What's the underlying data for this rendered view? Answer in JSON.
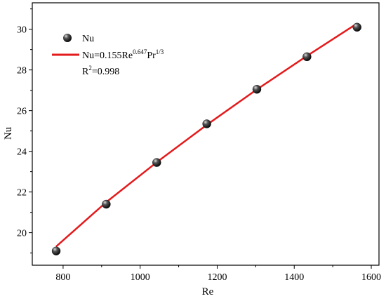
{
  "chart_data": {
    "type": "scatter",
    "title": "",
    "xlabel": "Re",
    "ylabel": "Nu",
    "xlim": [
      720,
      1620
    ],
    "ylim": [
      18.4,
      31.3
    ],
    "xticks": [
      800,
      1000,
      1200,
      1400,
      1600
    ],
    "yticks": [
      20,
      22,
      24,
      26,
      28,
      30
    ],
    "xtick_labels": [
      "800",
      "1000",
      "1200",
      "1400",
      "1600"
    ],
    "ytick_labels": [
      "20",
      "22",
      "24",
      "26",
      "28",
      "30"
    ],
    "grid": false,
    "legend_position": "top-left",
    "series": [
      {
        "name": "Nu",
        "kind": "scatter",
        "marker": "sphere",
        "color": "#000000",
        "x": [
          782,
          912,
          1043,
          1173,
          1303,
          1433,
          1563
        ],
        "y": [
          19.1,
          21.4,
          23.45,
          25.35,
          27.05,
          28.65,
          30.1
        ]
      },
      {
        "name": "fit",
        "kind": "line",
        "color": "#e41a1c",
        "x": [
          782,
          912,
          1043,
          1173,
          1303,
          1433,
          1563
        ],
        "y": [
          19.32,
          21.5,
          23.46,
          25.3,
          27.04,
          28.69,
          30.28
        ]
      }
    ],
    "legend": {
      "scatter_label": "Nu",
      "fit_label": {
        "prefix": "Nu=0.155Re",
        "exp1": "0.647",
        "mid": "Pr",
        "exp2": "1/3"
      },
      "r2_label": {
        "prefix": "R",
        "sup": "2",
        "suffix": "=0.998"
      }
    }
  }
}
